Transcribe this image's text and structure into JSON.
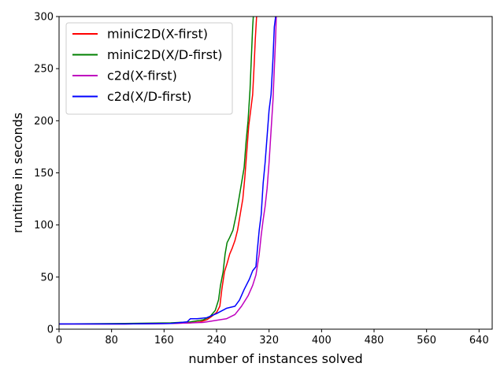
{
  "chart_data": {
    "type": "line",
    "title": "",
    "xlabel": "number of instances solved",
    "ylabel": "runtime in seconds",
    "xlim": [
      0,
      660
    ],
    "ylim": [
      0,
      300
    ],
    "xticks": [
      "0",
      "80",
      "160",
      "240",
      "320",
      "400",
      "480",
      "560",
      "640"
    ],
    "yticks": [
      "0",
      "50",
      "100",
      "150",
      "200",
      "250",
      "300"
    ],
    "legend_position": "top-left",
    "grid": false,
    "series": [
      {
        "name": "miniC2D(X-first)",
        "color": "#ff0000",
        "points": [
          [
            0,
            5
          ],
          [
            100,
            5
          ],
          [
            170,
            5.5
          ],
          [
            200,
            6
          ],
          [
            215,
            7
          ],
          [
            225,
            9
          ],
          [
            232,
            12
          ],
          [
            240,
            16
          ],
          [
            245,
            22
          ],
          [
            248,
            38
          ],
          [
            252,
            55
          ],
          [
            256,
            63
          ],
          [
            260,
            72
          ],
          [
            264,
            78
          ],
          [
            268,
            85
          ],
          [
            272,
            95
          ],
          [
            276,
            110
          ],
          [
            280,
            125
          ],
          [
            283,
            145
          ],
          [
            286,
            170
          ],
          [
            289,
            195
          ],
          [
            292,
            210
          ],
          [
            295,
            225
          ],
          [
            297,
            250
          ],
          [
            299,
            278
          ],
          [
            301,
            300
          ]
        ]
      },
      {
        "name": "miniC2D(X/D-first)",
        "color": "#008000",
        "points": [
          [
            0,
            5
          ],
          [
            100,
            5.5
          ],
          [
            170,
            6
          ],
          [
            200,
            7
          ],
          [
            220,
            9
          ],
          [
            230,
            12
          ],
          [
            238,
            18
          ],
          [
            243,
            28
          ],
          [
            246,
            42
          ],
          [
            250,
            55
          ],
          [
            253,
            72
          ],
          [
            256,
            83
          ],
          [
            260,
            88
          ],
          [
            265,
            95
          ],
          [
            270,
            110
          ],
          [
            274,
            125
          ],
          [
            278,
            140
          ],
          [
            282,
            155
          ],
          [
            285,
            180
          ],
          [
            288,
            200
          ],
          [
            291,
            230
          ],
          [
            293,
            260
          ],
          [
            295,
            290
          ],
          [
            296,
            300
          ]
        ]
      },
      {
        "name": "c2d(X-first)",
        "color": "#bf00bf",
        "points": [
          [
            0,
            5
          ],
          [
            100,
            5
          ],
          [
            170,
            5.5
          ],
          [
            200,
            6
          ],
          [
            220,
            6.5
          ],
          [
            235,
            8
          ],
          [
            255,
            10
          ],
          [
            268,
            14
          ],
          [
            278,
            22
          ],
          [
            288,
            32
          ],
          [
            295,
            42
          ],
          [
            300,
            52
          ],
          [
            305,
            72
          ],
          [
            308,
            90
          ],
          [
            311,
            105
          ],
          [
            314,
            118
          ],
          [
            317,
            135
          ],
          [
            320,
            160
          ],
          [
            323,
            190
          ],
          [
            326,
            220
          ],
          [
            328,
            250
          ],
          [
            330,
            280
          ],
          [
            331,
            300
          ]
        ]
      },
      {
        "name": "c2d(X/D-first)",
        "color": "#0000ff",
        "points": [
          [
            0,
            5
          ],
          [
            100,
            5
          ],
          [
            170,
            5.5
          ],
          [
            195,
            7
          ],
          [
            200,
            10
          ],
          [
            210,
            10
          ],
          [
            225,
            11
          ],
          [
            240,
            15
          ],
          [
            255,
            20
          ],
          [
            268,
            22
          ],
          [
            275,
            28
          ],
          [
            282,
            38
          ],
          [
            290,
            48
          ],
          [
            295,
            56
          ],
          [
            300,
            60
          ],
          [
            302,
            75
          ],
          [
            305,
            95
          ],
          [
            308,
            110
          ],
          [
            311,
            140
          ],
          [
            314,
            160
          ],
          [
            317,
            185
          ],
          [
            320,
            210
          ],
          [
            323,
            225
          ],
          [
            326,
            260
          ],
          [
            328,
            290
          ],
          [
            330,
            300
          ]
        ]
      }
    ]
  }
}
